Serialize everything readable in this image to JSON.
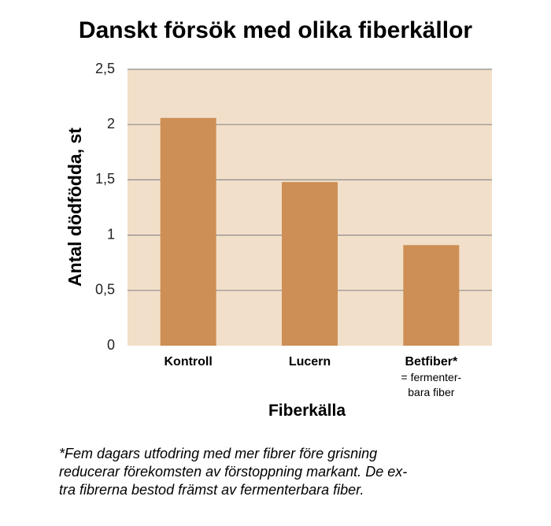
{
  "chart_data": {
    "type": "bar",
    "title": "Danskt försök med olika fiberkällor",
    "xlabel": "Fiberkälla",
    "ylabel": "Antal dödfödda, st",
    "categories": [
      "Kontroll",
      "Lucern",
      "Betfiber*"
    ],
    "category_sublabels": [
      "",
      "",
      "= fermenter-\nbara fiber"
    ],
    "values": [
      2.06,
      1.48,
      0.91
    ],
    "ylim": [
      0,
      2.5
    ],
    "yticks": [
      0,
      0.5,
      1,
      1.5,
      2,
      2.5
    ],
    "ytick_labels": [
      "0",
      "0,5",
      "1",
      "1,5",
      "2",
      "2,5"
    ],
    "grid": true,
    "legend": "none",
    "colors": {
      "bar": "#cd8f55",
      "plot_background": "#f2dfc9",
      "grid": "#8c8c8c"
    }
  },
  "footnote": {
    "lines": [
      "*Fem dagars utfodring med mer fibrer före grisning",
      "reducerar förekomsten av förstoppning markant. De ex-",
      "tra fibrerna bestod främst av fermenterbara fiber."
    ]
  }
}
